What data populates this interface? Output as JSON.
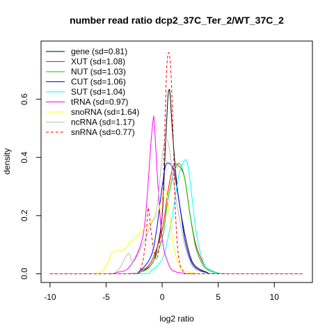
{
  "chart_data": {
    "type": "line",
    "title": "number read ratio dcp2_37C_Ter_2/WT_37C_2",
    "xlabel": "log2 ratio",
    "ylabel": "density",
    "xlim": [
      -10.8,
      13.4
    ],
    "ylim": [
      -0.03,
      0.8
    ],
    "x_ticks": [
      -10,
      -5,
      0,
      5,
      10
    ],
    "x_tick_labels": [
      "-10",
      "-5",
      "0",
      "5",
      "10"
    ],
    "y_ticks": [
      0.0,
      0.2,
      0.4,
      0.6
    ],
    "y_tick_labels": [
      "0.0",
      "0.2",
      "0.4",
      "0.6"
    ],
    "grid": false,
    "legend_position": "top-left",
    "series": [
      {
        "name": "gene (sd=0.81)",
        "color": "#000000",
        "dash": false,
        "points": [
          [
            -10,
            0
          ],
          [
            -3,
            0
          ],
          [
            -2,
            0.005
          ],
          [
            -1,
            0.03
          ],
          [
            -0.5,
            0.08
          ],
          [
            0,
            0.2
          ],
          [
            0.3,
            0.45
          ],
          [
            0.5,
            0.6
          ],
          [
            0.6,
            0.63
          ],
          [
            0.7,
            0.62
          ],
          [
            0.9,
            0.5
          ],
          [
            1.2,
            0.35
          ],
          [
            1.5,
            0.25
          ],
          [
            2,
            0.14
          ],
          [
            2.5,
            0.06
          ],
          [
            3,
            0.025
          ],
          [
            4,
            0.005
          ],
          [
            5,
            0
          ],
          [
            12.5,
            0
          ]
        ]
      },
      {
        "name": "XUT (sd=1.08)",
        "color": "#ff0000",
        "dash": false,
        "points": [
          [
            -10,
            0
          ],
          [
            -3,
            0
          ],
          [
            -2,
            0.01
          ],
          [
            -1,
            0.04
          ],
          [
            0,
            0.15
          ],
          [
            0.5,
            0.28
          ],
          [
            1,
            0.37
          ],
          [
            1.5,
            0.37
          ],
          [
            2,
            0.33
          ],
          [
            2.5,
            0.2
          ],
          [
            3,
            0.1
          ],
          [
            3.5,
            0.05
          ],
          [
            4,
            0.02
          ],
          [
            5,
            0.003
          ],
          [
            6,
            0
          ],
          [
            12.5,
            0
          ]
        ]
      },
      {
        "name": "NUT (sd=1.03)",
        "color": "#00cc00",
        "dash": false,
        "points": [
          [
            -10,
            0
          ],
          [
            -3,
            0
          ],
          [
            -2,
            0.005
          ],
          [
            -1,
            0.03
          ],
          [
            0,
            0.12
          ],
          [
            0.5,
            0.25
          ],
          [
            1,
            0.34
          ],
          [
            1.5,
            0.38
          ],
          [
            2,
            0.33
          ],
          [
            2.5,
            0.2
          ],
          [
            3,
            0.09
          ],
          [
            3.5,
            0.04
          ],
          [
            4,
            0.015
          ],
          [
            5,
            0.002
          ],
          [
            6,
            0
          ],
          [
            12.5,
            0
          ]
        ]
      },
      {
        "name": "CUT (sd=1.06)",
        "color": "#0000ff",
        "dash": false,
        "points": [
          [
            -10,
            0
          ],
          [
            -3,
            0
          ],
          [
            -2,
            0.01
          ],
          [
            -1,
            0.06
          ],
          [
            -0.5,
            0.15
          ],
          [
            0,
            0.3
          ],
          [
            0.3,
            0.37
          ],
          [
            0.6,
            0.38
          ],
          [
            1,
            0.36
          ],
          [
            1.3,
            0.3
          ],
          [
            1.7,
            0.2
          ],
          [
            2,
            0.12
          ],
          [
            2.5,
            0.05
          ],
          [
            3,
            0.02
          ],
          [
            4,
            0.003
          ],
          [
            5,
            0
          ],
          [
            12.5,
            0
          ]
        ]
      },
      {
        "name": "SUT (sd=1.04)",
        "color": "#00ffff",
        "dash": false,
        "points": [
          [
            -10,
            0
          ],
          [
            -2,
            0
          ],
          [
            -1,
            0.01
          ],
          [
            0,
            0.05
          ],
          [
            0.5,
            0.12
          ],
          [
            1,
            0.22
          ],
          [
            1.5,
            0.34
          ],
          [
            2,
            0.39
          ],
          [
            2.3,
            0.37
          ],
          [
            2.7,
            0.25
          ],
          [
            3,
            0.15
          ],
          [
            3.5,
            0.06
          ],
          [
            4,
            0.02
          ],
          [
            5,
            0.003
          ],
          [
            6,
            0
          ],
          [
            12.5,
            0
          ]
        ]
      },
      {
        "name": "tRNA (sd=0.97)",
        "color": "#ff00ff",
        "dash": false,
        "points": [
          [
            -10,
            0
          ],
          [
            -5,
            0
          ],
          [
            -4,
            0.005
          ],
          [
            -3,
            0.02
          ],
          [
            -2,
            0.09
          ],
          [
            -1.5,
            0.19
          ],
          [
            -1,
            0.45
          ],
          [
            -0.8,
            0.53
          ],
          [
            -0.7,
            0.52
          ],
          [
            -0.4,
            0.32
          ],
          [
            0,
            0.12
          ],
          [
            0.5,
            0.04
          ],
          [
            1,
            0.01
          ],
          [
            2,
            0.002
          ],
          [
            3,
            0
          ],
          [
            12.5,
            0
          ]
        ]
      },
      {
        "name": "snoRNA (sd=1.64)",
        "color": "#ffff00",
        "dash": false,
        "points": [
          [
            -10,
            0
          ],
          [
            -6,
            0
          ],
          [
            -5,
            0.03
          ],
          [
            -4.5,
            0.07
          ],
          [
            -4,
            0.08
          ],
          [
            -3.5,
            0.08
          ],
          [
            -3,
            0.1
          ],
          [
            -2.5,
            0.12
          ],
          [
            -2,
            0.14
          ],
          [
            -1.5,
            0.16
          ],
          [
            -1,
            0.18
          ],
          [
            -0.5,
            0.2
          ],
          [
            0,
            0.26
          ],
          [
            0.3,
            0.29
          ],
          [
            0.6,
            0.22
          ],
          [
            1,
            0.1
          ],
          [
            1.5,
            0.03
          ],
          [
            2,
            0.01
          ],
          [
            3,
            0.002
          ],
          [
            4,
            0
          ],
          [
            12.5,
            0
          ]
        ]
      },
      {
        "name": "ncRNA (sd=1.17)",
        "color": "#bbbbbb",
        "dash": false,
        "points": [
          [
            -10,
            0
          ],
          [
            -5,
            0
          ],
          [
            -4,
            0.01
          ],
          [
            -3.5,
            0.04
          ],
          [
            -3,
            0.07
          ],
          [
            -2.6,
            0.04
          ],
          [
            -2,
            0.08
          ],
          [
            -1.5,
            0.12
          ],
          [
            -1,
            0.17
          ],
          [
            -0.5,
            0.22
          ],
          [
            0,
            0.4
          ],
          [
            0.3,
            0.46
          ],
          [
            0.6,
            0.44
          ],
          [
            1,
            0.32
          ],
          [
            1.5,
            0.2
          ],
          [
            2,
            0.1
          ],
          [
            2.5,
            0.04
          ],
          [
            3,
            0.015
          ],
          [
            4,
            0.002
          ],
          [
            5,
            0
          ],
          [
            12.5,
            0
          ]
        ]
      },
      {
        "name": "snRNA (sd=0.77)",
        "color": "#ff0000",
        "dash": true,
        "points": [
          [
            -10,
            0
          ],
          [
            -3,
            0
          ],
          [
            -2,
            0.01
          ],
          [
            -1.5,
            0.1
          ],
          [
            -1.3,
            0.21
          ],
          [
            -1.2,
            0.22
          ],
          [
            -1,
            0.15
          ],
          [
            -0.7,
            0.07
          ],
          [
            -0.4,
            0.06
          ],
          [
            0,
            0.2
          ],
          [
            0.2,
            0.45
          ],
          [
            0.4,
            0.7
          ],
          [
            0.6,
            0.76
          ],
          [
            0.8,
            0.68
          ],
          [
            1,
            0.45
          ],
          [
            1.2,
            0.2
          ],
          [
            1.5,
            0.05
          ],
          [
            2,
            0.005
          ],
          [
            3,
            0
          ],
          [
            12.5,
            0
          ]
        ]
      }
    ]
  }
}
